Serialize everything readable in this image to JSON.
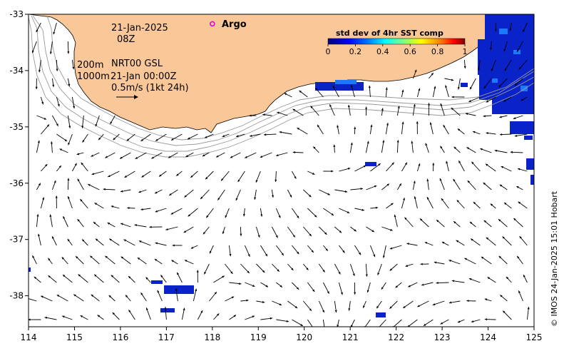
{
  "annotations": {
    "date": "21-Jan-2025",
    "hour": "08Z",
    "argo_label": "Argo",
    "isobath_shallow": "200m",
    "isobath_deep": "1000m",
    "product": "NRT00 GSL",
    "product_time": "21-Jan 00:00Z",
    "scale_label": "0.5m/s (1kt 24h)"
  },
  "colorbar": {
    "title": "std dev of 4hr SST comp",
    "ticks": [
      "0",
      "0.2",
      "0.4",
      "0.6",
      "0.8",
      "1"
    ]
  },
  "credit": "© IMOS 24-Jan-2025 15:01 Hobart",
  "axes": {
    "x_ticks": [
      "114",
      "115",
      "116",
      "117",
      "118",
      "119",
      "120",
      "121",
      "122",
      "123",
      "124",
      "125"
    ],
    "y_ticks": [
      "-33",
      "-34",
      "-35",
      "-36",
      "-37",
      "-38"
    ],
    "lon_range": [
      114,
      125
    ],
    "lat_range": [
      -38.55,
      -33
    ]
  },
  "colors": {
    "land": "#FAC898",
    "sst_high": "#0A23C8",
    "sst_mid": "#1E78FF",
    "argo_marker": "#E000E0"
  },
  "argo_float": {
    "lon": 118.0,
    "lat": -33.17
  },
  "scale_arrow_ms": 0.5
}
